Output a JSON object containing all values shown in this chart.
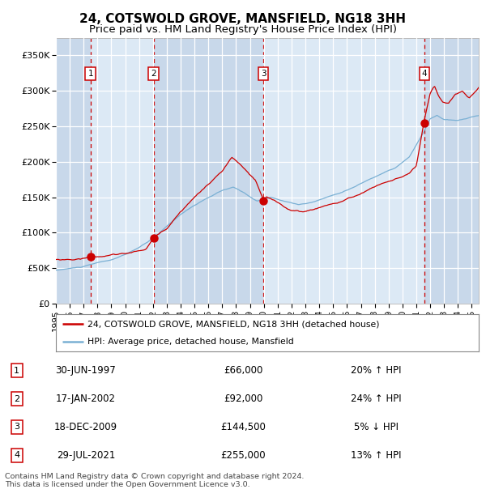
{
  "title": "24, COTSWOLD GROVE, MANSFIELD, NG18 3HH",
  "subtitle": "Price paid vs. HM Land Registry's House Price Index (HPI)",
  "title_fontsize": 11,
  "subtitle_fontsize": 9.5,
  "ylim": [
    0,
    375000
  ],
  "xlim_start": 1995.0,
  "xlim_end": 2025.5,
  "yticks": [
    0,
    50000,
    100000,
    150000,
    200000,
    250000,
    300000,
    350000
  ],
  "ytick_labels": [
    "£0",
    "£50K",
    "£100K",
    "£150K",
    "£200K",
    "£250K",
    "£300K",
    "£350K"
  ],
  "background_color": "#ffffff",
  "plot_bg_color": "#dce9f5",
  "grid_color": "#ffffff",
  "red_line_color": "#cc0000",
  "blue_line_color": "#7ab0d4",
  "dashed_vline_color": "#cc0000",
  "sale_markers": [
    {
      "date_decimal": 1997.496,
      "price": 66000,
      "label": "1"
    },
    {
      "date_decimal": 2002.046,
      "price": 92000,
      "label": "2"
    },
    {
      "date_decimal": 2009.963,
      "price": 144500,
      "label": "3"
    },
    {
      "date_decimal": 2021.573,
      "price": 255000,
      "label": "4"
    }
  ],
  "table_data": [
    {
      "num": "1",
      "date": "30-JUN-1997",
      "price": "£66,000",
      "hpi": "20% ↑ HPI"
    },
    {
      "num": "2",
      "date": "17-JAN-2002",
      "price": "£92,000",
      "hpi": "24% ↑ HPI"
    },
    {
      "num": "3",
      "date": "18-DEC-2009",
      "price": "£144,500",
      "hpi": "5% ↓ HPI"
    },
    {
      "num": "4",
      "date": "29-JUL-2021",
      "price": "£255,000",
      "hpi": "13% ↑ HPI"
    }
  ],
  "legend_entries": [
    "24, COTSWOLD GROVE, MANSFIELD, NG18 3HH (detached house)",
    "HPI: Average price, detached house, Mansfield"
  ],
  "footnote": "Contains HM Land Registry data © Crown copyright and database right 2024.\nThis data is licensed under the Open Government Licence v3.0.",
  "xtick_years": [
    1995,
    1996,
    1997,
    1998,
    1999,
    2000,
    2001,
    2002,
    2003,
    2004,
    2005,
    2006,
    2007,
    2008,
    2009,
    2010,
    2011,
    2012,
    2013,
    2014,
    2015,
    2016,
    2017,
    2018,
    2019,
    2020,
    2021,
    2022,
    2023,
    2024,
    2025
  ]
}
